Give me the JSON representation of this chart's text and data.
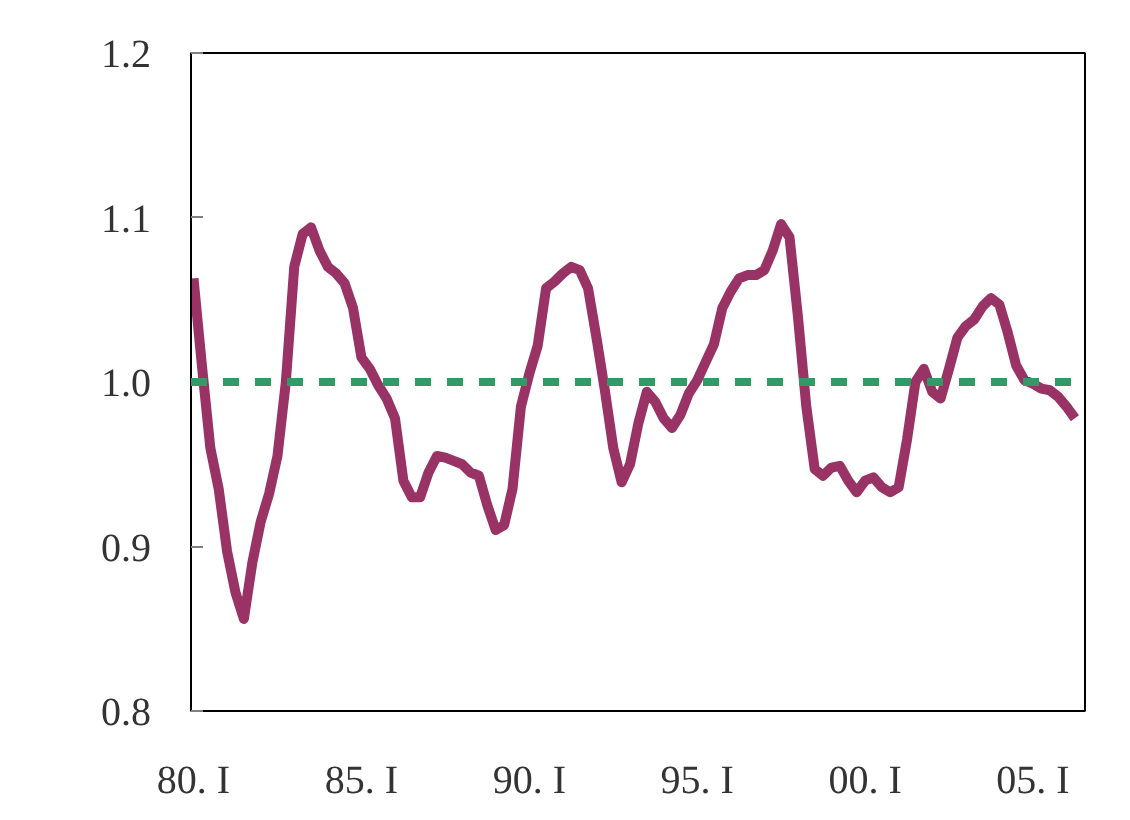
{
  "chart_data": {
    "type": "line",
    "categories": [
      "80. I",
      null,
      null,
      null,
      null,
      null,
      null,
      null,
      null,
      null,
      null,
      null,
      null,
      null,
      null,
      null,
      null,
      null,
      null,
      null,
      "85. I",
      null,
      null,
      null,
      null,
      null,
      null,
      null,
      null,
      null,
      null,
      null,
      null,
      null,
      null,
      null,
      null,
      null,
      null,
      null,
      "90. I",
      null,
      null,
      null,
      null,
      null,
      null,
      null,
      null,
      null,
      null,
      null,
      null,
      null,
      null,
      null,
      null,
      null,
      null,
      null,
      "95. I",
      null,
      null,
      null,
      null,
      null,
      null,
      null,
      null,
      null,
      null,
      null,
      null,
      null,
      null,
      null,
      null,
      null,
      null,
      null,
      "00. I",
      null,
      null,
      null,
      null,
      null,
      null,
      null,
      null,
      null,
      null,
      null,
      null,
      null,
      null,
      null,
      null,
      null,
      null,
      null,
      "05. I",
      null,
      null,
      null,
      null,
      null
    ],
    "series": [
      {
        "color": "#993366",
        "values": [
          1.063,
          1.01,
          0.96,
          0.935,
          0.897,
          0.872,
          0.856,
          0.89,
          0.915,
          0.932,
          0.955,
          1.0,
          1.07,
          1.09,
          1.094,
          1.08,
          1.07,
          1.066,
          1.06,
          1.045,
          1.015,
          1.008,
          0.998,
          0.99,
          0.978,
          0.94,
          0.93,
          0.93,
          0.945,
          0.955,
          0.954,
          0.952,
          0.95,
          0.945,
          0.943,
          0.925,
          0.91,
          0.913,
          0.935,
          0.985,
          1.005,
          1.022,
          1.057,
          1.061,
          1.066,
          1.07,
          1.068,
          1.057,
          1.027,
          0.995,
          0.96,
          0.939,
          0.95,
          0.975,
          0.994,
          0.988,
          0.978,
          0.972,
          0.98,
          0.993,
          1.001,
          1.012,
          1.023,
          1.045,
          1.055,
          1.063,
          1.065,
          1.065,
          1.068,
          1.08,
          1.096,
          1.088,
          1.04,
          0.985,
          0.947,
          0.943,
          0.948,
          0.949,
          0.94,
          0.933,
          0.94,
          0.942,
          0.936,
          0.933,
          0.936,
          0.965,
          1.0,
          1.008,
          0.994,
          0.99,
          1.008,
          1.027,
          1.034,
          1.038,
          1.046,
          1.051,
          1.047,
          1.03,
          1.01,
          1.001,
          0.999,
          0.996,
          0.995,
          0.991,
          0.985,
          0.978
        ]
      }
    ],
    "ylim": [
      0.8,
      1.2
    ],
    "yticks": [
      {
        "value": 0.8,
        "label": "0.8"
      },
      {
        "value": 0.9,
        "label": "0.9"
      },
      {
        "value": 1.0,
        "label": "1.0"
      },
      {
        "value": 1.1,
        "label": "1.1"
      },
      {
        "value": 1.2,
        "label": "1.2"
      }
    ],
    "ref_lines": [
      {
        "axis": "y",
        "value": 1.0,
        "color": "#339966",
        "line_style": "dashed"
      }
    ],
    "grid": false,
    "marker": "none",
    "line_style": "solid"
  }
}
